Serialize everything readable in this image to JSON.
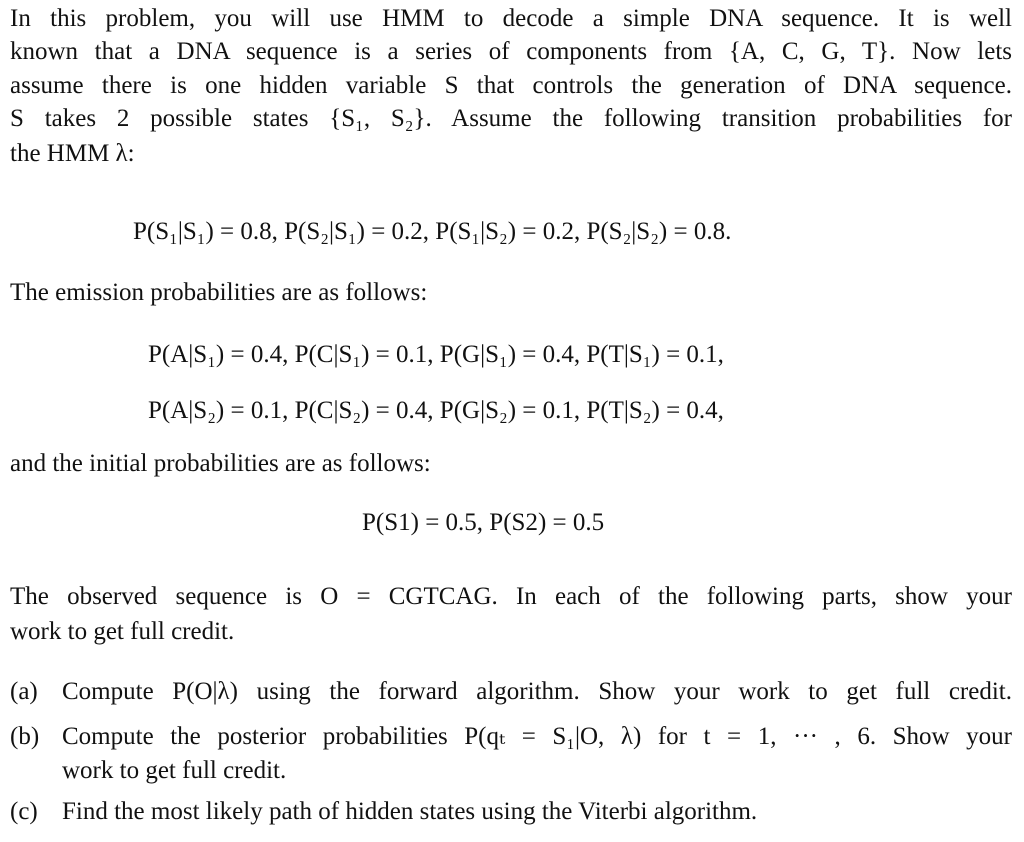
{
  "intro": [
    "In this problem, you will use HMM to decode a simple DNA sequence. It is well",
    "known that a DNA sequence is a series of components from {A, C, G, T}. Now lets",
    "assume there is one hidden variable S that controls the generation of DNA sequence.",
    "S takes 2 possible states {S₁, S₂}. Assume the following transition probabilities for",
    "the HMM λ:"
  ],
  "transition_eq": "P(S₁|S₁) = 0.8, P(S₂|S₁) = 0.2, P(S₁|S₂) = 0.2, P(S₂|S₂) = 0.8.",
  "emission_heading": "The emission probabilities are as follows:",
  "emission_eq": [
    "P(A|S₁) = 0.4, P(C|S₁) = 0.1, P(G|S₁) = 0.4, P(T|S₁) = 0.1,",
    "P(A|S₂) = 0.1, P(C|S₂) = 0.4, P(G|S₂) = 0.1, P(T|S₂) = 0.4,"
  ],
  "initial_heading": "and the initial probabilities are as follows:",
  "initial_eq": "P(S1) = 0.5, P(S2) = 0.5",
  "observed": [
    "The observed sequence is O = CGTCAG. In each of the following parts, show your",
    "work to get full credit."
  ],
  "parts": [
    {
      "label": "(a)",
      "lines": [
        "Compute P(O|λ) using the forward algorithm. Show your work to get full credit."
      ]
    },
    {
      "label": "(b)",
      "lines": [
        "Compute the posterior probabilities P(qₜ = S₁|O, λ) for t = 1, ··· , 6. Show your",
        "work to get full credit."
      ]
    },
    {
      "label": "(c)",
      "lines": [
        "Find the most likely path of hidden states using the Viterbi algorithm."
      ]
    }
  ]
}
